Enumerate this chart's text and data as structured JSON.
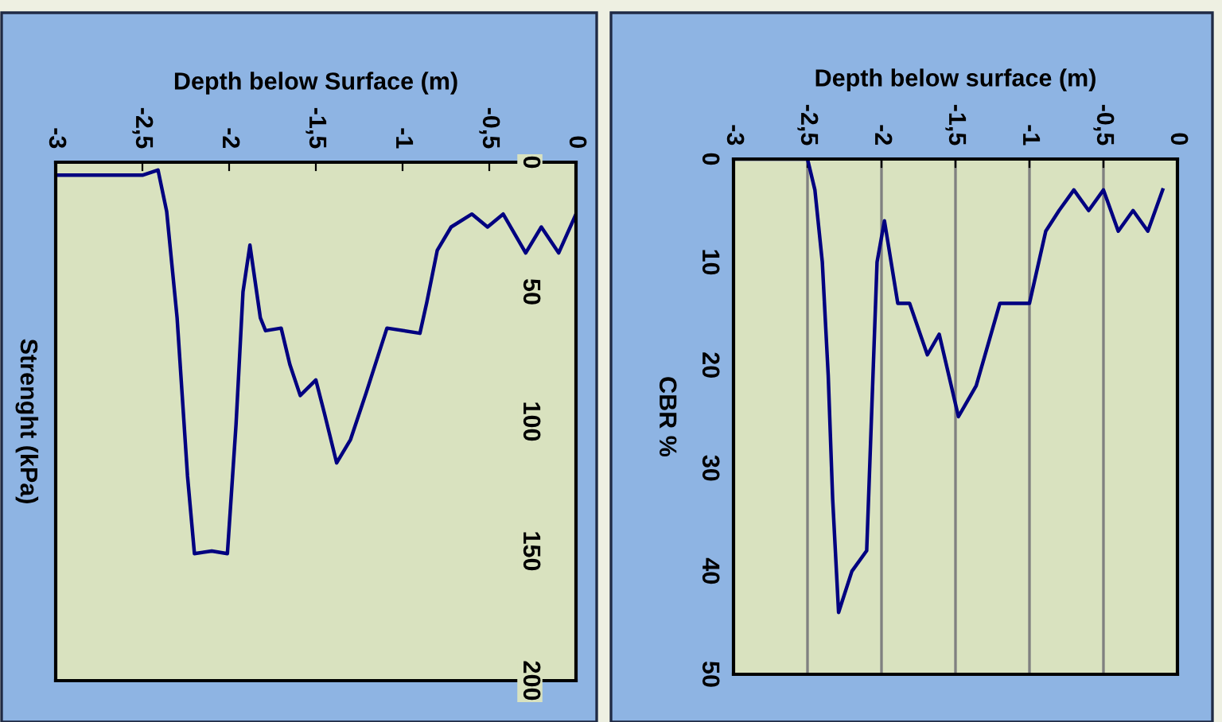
{
  "chart_data": [
    {
      "type": "line",
      "xlabel": "Depth below Surface (m)",
      "ylabel": "Strenght (kPa)",
      "xlim": [
        -3,
        0
      ],
      "ylim": [
        200,
        0
      ],
      "xticks": [
        -3,
        {
          "value": -2.5,
          "label": "-2,5"
        },
        -2,
        {
          "value": -1.5,
          "label": "-1,5"
        },
        -1,
        {
          "value": -0.5,
          "label": "-0,5"
        },
        0
      ],
      "yticks": [
        0,
        50,
        100,
        150,
        200
      ],
      "series": [
        {
          "color": "#000080",
          "x": [
            -3,
            -2.5,
            -2.41,
            -2.36,
            -2.3,
            -2.24,
            -2.2,
            -2.1,
            -2.01,
            -1.96,
            -1.92,
            -1.88,
            -1.82,
            -1.79,
            -1.7,
            -1.65,
            -1.59,
            -1.5,
            -1.45,
            -1.38,
            -1.3,
            -1.21,
            -1.09,
            -0.9,
            -0.86,
            -0.8,
            -0.72,
            -0.6,
            -0.51,
            -0.42,
            -0.29,
            -0.2,
            -0.1,
            0
          ],
          "values": [
            5,
            5,
            3,
            19,
            60,
            121,
            151,
            150,
            151,
            101,
            50,
            32,
            60,
            65,
            64,
            78,
            90,
            84,
            97,
            116,
            107,
            89,
            64,
            66,
            54,
            34,
            25,
            20,
            25,
            20,
            35,
            25,
            35,
            20
          ]
        }
      ]
    },
    {
      "type": "line",
      "xlabel": "Depth below surface (m)",
      "ylabel": "CBR %",
      "xlim": [
        -3,
        0
      ],
      "ylim": [
        50,
        0
      ],
      "grid": "x",
      "xticks": [
        -3,
        {
          "value": -2.5,
          "label": "-2,5"
        },
        -2,
        {
          "value": -1.5,
          "label": "-1,5"
        },
        -1,
        {
          "value": -0.5,
          "label": "-0,5"
        },
        0
      ],
      "yticks": [
        0,
        10,
        20,
        30,
        40,
        50
      ],
      "series": [
        {
          "color": "#000080",
          "x": [
            -3,
            -2.5,
            -2.45,
            -2.4,
            -2.36,
            -2.33,
            -2.29,
            -2.2,
            -2.1,
            -2.07,
            -2.03,
            -1.98,
            -1.89,
            -1.81,
            -1.69,
            -1.61,
            -1.48,
            -1.36,
            -1.2,
            -1.0,
            -0.89,
            -0.8,
            -0.7,
            -0.6,
            -0.5,
            -0.4,
            -0.3,
            -0.2,
            -0.1
          ],
          "values": [
            0,
            0,
            3,
            10,
            21,
            33,
            44,
            40,
            38,
            26,
            10,
            6,
            14,
            14,
            19,
            17,
            25,
            22,
            14,
            14,
            7,
            5,
            3,
            5,
            3,
            7,
            5,
            7,
            3
          ]
        }
      ]
    }
  ]
}
